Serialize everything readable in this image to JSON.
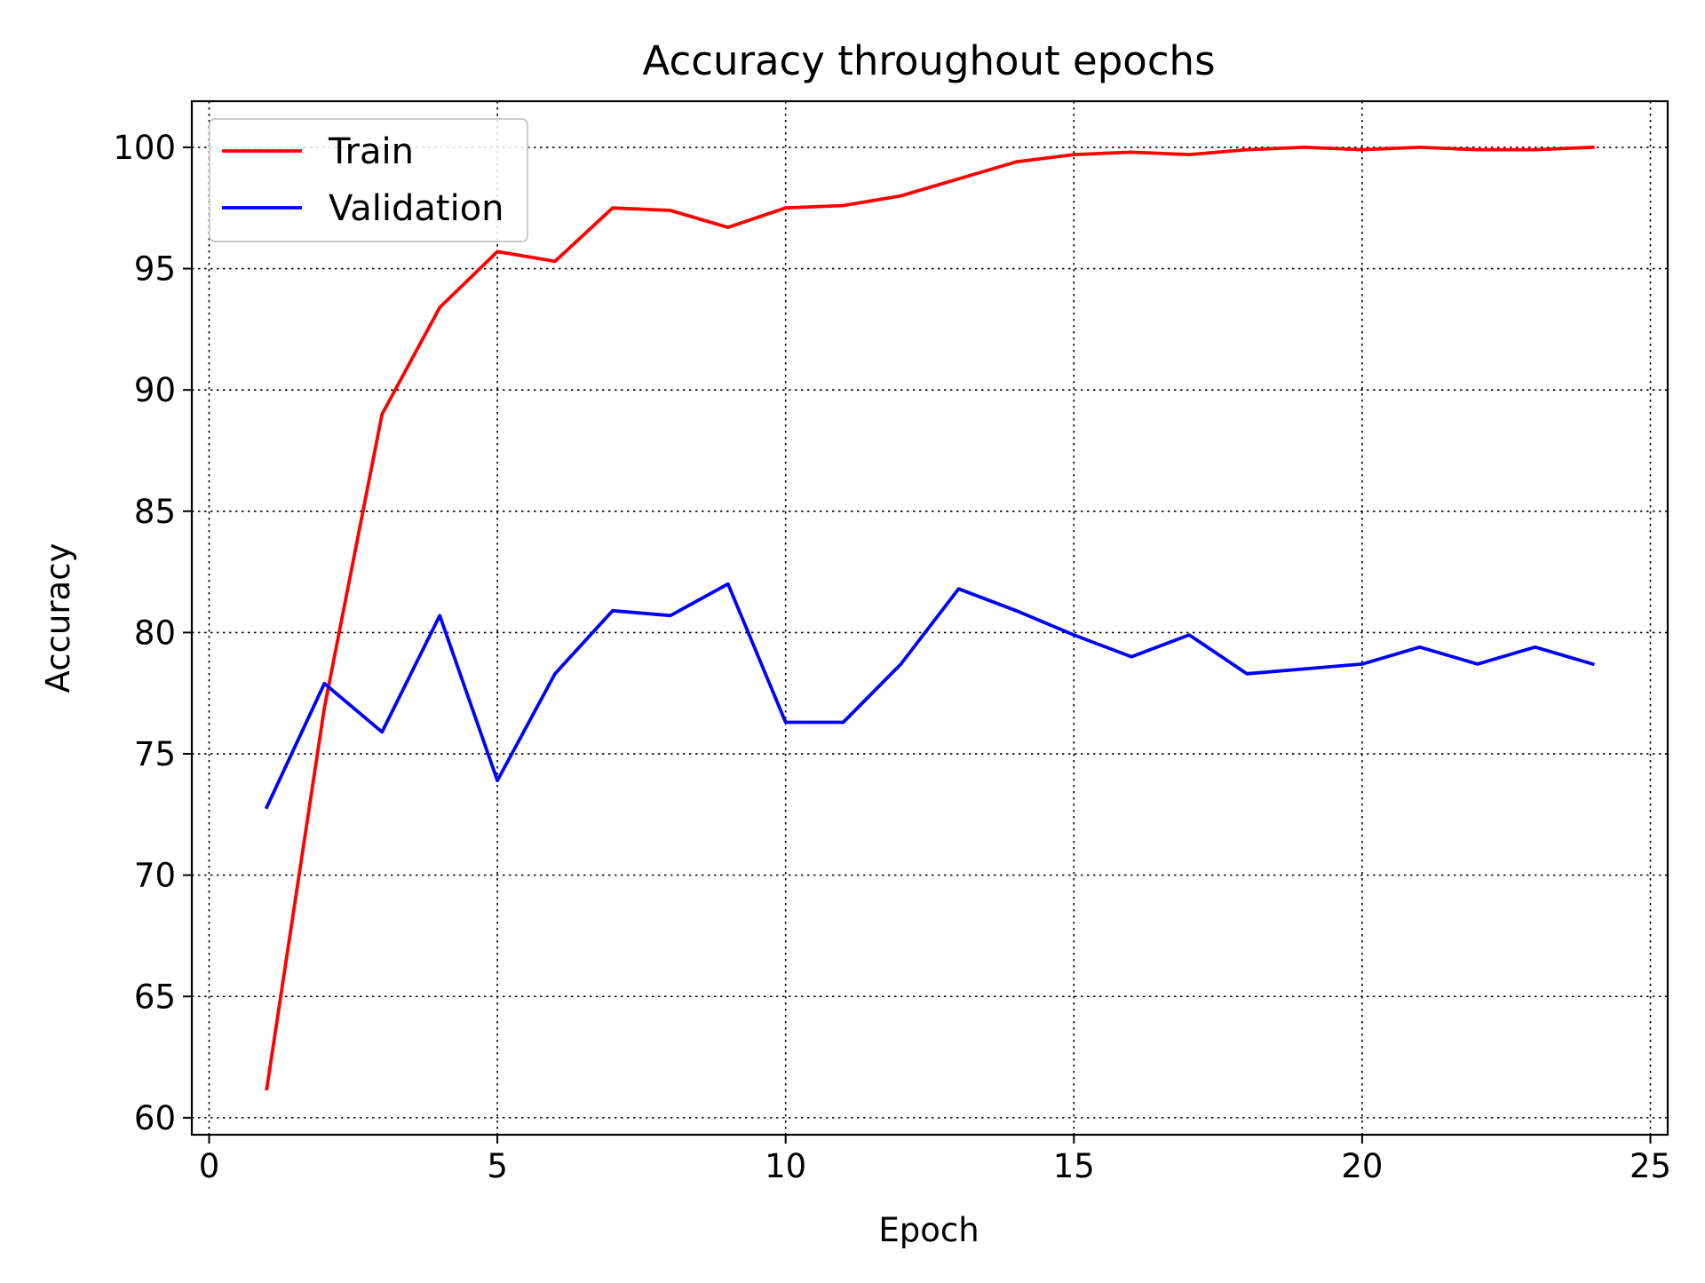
{
  "chart_data": {
    "type": "line",
    "title": "Accuracy throughout epochs",
    "xlabel": "Epoch",
    "ylabel": "Accuracy",
    "xlim": [
      -0.3,
      25.3
    ],
    "ylim": [
      59.3,
      101.9
    ],
    "xticks": [
      "0",
      "5",
      "10",
      "15",
      "20",
      "25"
    ],
    "yticks": [
      "60",
      "65",
      "70",
      "75",
      "80",
      "85",
      "90",
      "95",
      "100"
    ],
    "grid": true,
    "legend_position": "upper-left",
    "x": [
      1,
      2,
      3,
      4,
      5,
      6,
      7,
      8,
      9,
      10,
      11,
      12,
      13,
      14,
      15,
      16,
      17,
      18,
      19,
      20,
      21,
      22,
      23,
      24
    ],
    "series": [
      {
        "name": "Train",
        "color": "#ff0000",
        "values": [
          61.2,
          76.9,
          89.0,
          93.4,
          95.7,
          95.3,
          97.5,
          97.4,
          96.7,
          97.5,
          97.6,
          98.0,
          98.7,
          99.4,
          99.7,
          99.8,
          99.7,
          99.9,
          100.0,
          99.9,
          100.0,
          99.9,
          99.9,
          100.0
        ]
      },
      {
        "name": "Validation",
        "color": "#0000ff",
        "values": [
          72.8,
          77.9,
          75.9,
          80.7,
          73.9,
          78.3,
          80.9,
          80.7,
          82.0,
          76.3,
          76.3,
          78.7,
          81.8,
          80.9,
          79.9,
          79.0,
          79.9,
          78.3,
          78.5,
          78.7,
          79.4,
          78.7,
          79.4,
          78.7
        ]
      }
    ]
  }
}
